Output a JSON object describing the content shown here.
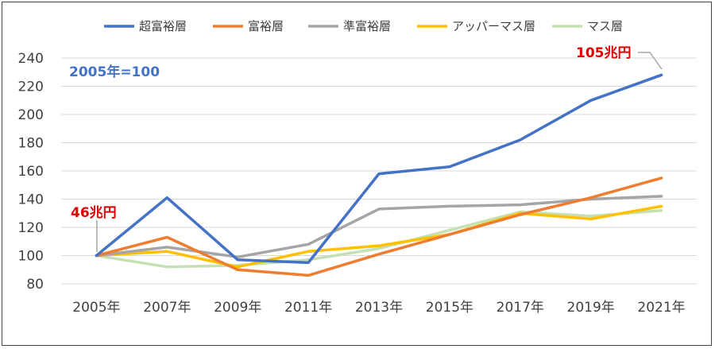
{
  "chart_data": {
    "type": "line",
    "categories": [
      "2005年",
      "2007年",
      "2009年",
      "2011年",
      "2013年",
      "2015年",
      "2017年",
      "2019年",
      "2021年"
    ],
    "series": [
      {
        "name": "超富裕層",
        "color": "#4472C4",
        "values": [
          100,
          141,
          97,
          95,
          158,
          163,
          182,
          210,
          228
        ]
      },
      {
        "name": "富裕層",
        "color": "#ED7D31",
        "values": [
          100,
          113,
          90,
          86,
          101,
          115,
          129,
          141,
          155
        ]
      },
      {
        "name": "準富裕層",
        "color": "#A5A5A5",
        "values": [
          100,
          106,
          99,
          108,
          133,
          135,
          136,
          140,
          142
        ]
      },
      {
        "name": "アッパーマス層",
        "color": "#FFC000",
        "values": [
          100,
          103,
          92,
          103,
          107,
          115,
          130,
          126,
          135
        ]
      },
      {
        "name": "マス層",
        "color": "#C5E0B4",
        "values": [
          100,
          92,
          93,
          97,
          105,
          118,
          131,
          128,
          132
        ]
      }
    ],
    "ylim": [
      80,
      240
    ],
    "yticks": [
      80,
      100,
      120,
      140,
      160,
      180,
      200,
      220,
      240
    ],
    "grid": true,
    "legend_position": "top",
    "annotations": {
      "base_note": {
        "text": "2005年=100",
        "color": "#4472C4"
      },
      "start_value": {
        "text": "46兆円",
        "color": "#E00000"
      },
      "end_value": {
        "text": "105兆円",
        "color": "#E00000"
      }
    }
  }
}
